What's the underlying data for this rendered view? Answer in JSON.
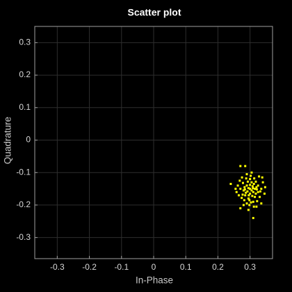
{
  "chart_data": {
    "type": "scatter",
    "title": "Scatter plot",
    "x_label": "In-Phase",
    "y_label": "Quadrature",
    "color": "#ffff00",
    "grid": true,
    "xlim": [
      -0.37,
      0.37
    ],
    "ylim": [
      -0.365,
      0.35
    ],
    "xticks": [
      -0.3,
      -0.2,
      -0.1,
      0,
      0.1,
      0.2,
      0.3
    ],
    "yticks": [
      -0.3,
      -0.2,
      -0.1,
      0,
      0.1,
      0.2,
      0.3
    ],
    "x": [
      0.3,
      0.31,
      0.29,
      0.285,
      0.32,
      0.305,
      0.295,
      0.315,
      0.28,
      0.325,
      0.3,
      0.27,
      0.335,
      0.31,
      0.29,
      0.3,
      0.308,
      0.292,
      0.318,
      0.278,
      0.265,
      0.33,
      0.302,
      0.312,
      0.288,
      0.34,
      0.262,
      0.298,
      0.322,
      0.282,
      0.27,
      0.285,
      0.31,
      0.24,
      0.27,
      0.345,
      0.328,
      0.275,
      0.305,
      0.295,
      0.335,
      0.258,
      0.315,
      0.305,
      0.295,
      0.287,
      0.318,
      0.3,
      0.312,
      0.283,
      0.325,
      0.293,
      0.307,
      0.277,
      0.332,
      0.298,
      0.268,
      0.338,
      0.29,
      0.32,
      0.28,
      0.347,
      0.255,
      0.303,
      0.313,
      0.284,
      0.296,
      0.309,
      0.321,
      0.274
    ],
    "values": [
      -0.15,
      -0.16,
      -0.14,
      -0.17,
      -0.145,
      -0.13,
      -0.18,
      -0.175,
      -0.155,
      -0.16,
      -0.12,
      -0.15,
      -0.15,
      -0.19,
      -0.195,
      -0.165,
      -0.142,
      -0.158,
      -0.128,
      -0.132,
      -0.17,
      -0.175,
      -0.11,
      -0.205,
      -0.118,
      -0.13,
      -0.14,
      -0.2,
      -0.188,
      -0.185,
      -0.08,
      -0.08,
      -0.24,
      -0.135,
      -0.21,
      -0.165,
      -0.112,
      -0.115,
      -0.1,
      -0.215,
      -0.195,
      -0.16,
      -0.15,
      -0.155,
      -0.148,
      -0.162,
      -0.165,
      -0.138,
      -0.135,
      -0.145,
      -0.14,
      -0.128,
      -0.172,
      -0.168,
      -0.158,
      -0.185,
      -0.125,
      -0.115,
      -0.105,
      -0.205,
      -0.2,
      -0.145,
      -0.15,
      -0.192,
      -0.118,
      -0.152,
      -0.17,
      -0.148,
      -0.152,
      -0.178
    ]
  }
}
